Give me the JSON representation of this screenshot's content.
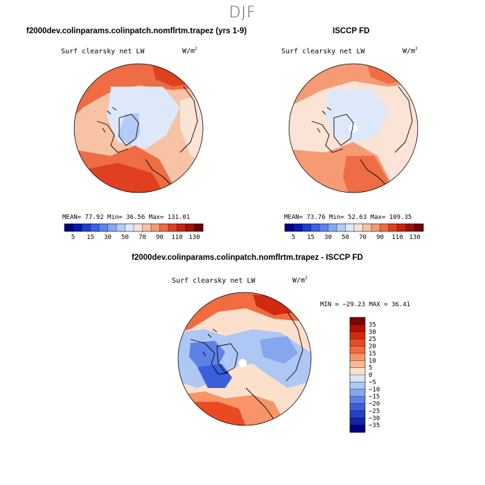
{
  "figure": {
    "title": "DJF",
    "unit_base": "W/m",
    "unit_exp": "2"
  },
  "panels": {
    "model": {
      "title": "f2000dev.colinparams.colinpatch.nomflrtm.trapez (yrs 1-9)",
      "variable": "Surf clearsky net LW",
      "mean_label": "MEAN=",
      "mean": "77.92",
      "min_label": "Min=",
      "min": "36.56",
      "max_label": "Max=",
      "max": "131.01"
    },
    "obs": {
      "title": "ISCCP FD",
      "variable": "Surf clearsky net LW",
      "mean_label": "MEAN=",
      "mean": "73.76",
      "min_label": "Min=",
      "min": "52.63",
      "max_label": "Max=",
      "max": "109.35"
    },
    "diff": {
      "title": "f2000dev.colinparams.colinpatch.nomflrtm.trapez - ISCCP FD",
      "variable": "Surf clearsky net LW",
      "minmax_text": "MIN = −29.23 MAX =  36.41"
    }
  },
  "chart_data": [
    {
      "type": "heatmap",
      "projection": "north polar stereographic",
      "title": "f2000dev.colinparams.colinpatch.nomflrtm.trapez (yrs 1-9)",
      "variable": "Surf clearsky net LW",
      "units": "W/m2",
      "stats": {
        "mean": 77.92,
        "min": 36.56,
        "max": 131.01
      },
      "colorbar": {
        "levels": [
          5,
          10,
          15,
          20,
          30,
          40,
          50,
          60,
          70,
          80,
          90,
          100,
          110,
          120,
          130
        ],
        "tick_labels": [
          "5",
          "15",
          "30",
          "50",
          "70",
          "90",
          "110",
          "130"
        ],
        "colors": [
          "#000080",
          "#0818a8",
          "#1f3fd0",
          "#3a62e2",
          "#5b84ec",
          "#86a8f1",
          "#b3cbf6",
          "#dde9fb",
          "#fbe3d6",
          "#f8c2a5",
          "#f59a73",
          "#ee6d45",
          "#e0401f",
          "#c42410",
          "#9c1208",
          "#6e0000"
        ]
      }
    },
    {
      "type": "heatmap",
      "projection": "north polar stereographic",
      "title": "ISCCP FD",
      "variable": "Surf clearsky net LW",
      "units": "W/m2",
      "stats": {
        "mean": 73.76,
        "min": 52.63,
        "max": 109.35
      },
      "colorbar": {
        "levels": [
          5,
          10,
          15,
          20,
          30,
          40,
          50,
          60,
          70,
          80,
          90,
          100,
          110,
          120,
          130
        ],
        "tick_labels": [
          "5",
          "15",
          "30",
          "50",
          "70",
          "90",
          "110",
          "130"
        ],
        "colors": [
          "#000080",
          "#0818a8",
          "#1f3fd0",
          "#3a62e2",
          "#5b84ec",
          "#86a8f1",
          "#b3cbf6",
          "#dde9fb",
          "#fbe3d6",
          "#f8c2a5",
          "#f59a73",
          "#ee6d45",
          "#e0401f",
          "#c42410",
          "#9c1208",
          "#6e0000"
        ]
      }
    },
    {
      "type": "heatmap",
      "projection": "north polar stereographic",
      "title": "f2000dev.colinparams.colinpatch.nomflrtm.trapez - ISCCP FD",
      "variable": "Surf clearsky net LW",
      "units": "W/m2",
      "stats": {
        "min": -29.23,
        "max": 36.41
      },
      "colorbar": {
        "orientation": "vertical",
        "tick_labels": [
          "35",
          "30",
          "25",
          "20",
          "15",
          "10",
          "5",
          "0",
          "−5",
          "−10",
          "−15",
          "−20",
          "−25",
          "−30",
          "−35"
        ],
        "colors": [
          "#800000",
          "#b01000",
          "#d02a10",
          "#ea4a22",
          "#f26c40",
          "#f79468",
          "#fab899",
          "#fde0cc",
          "#d7e6fb",
          "#aec7f5",
          "#86a6ee",
          "#5d82e6",
          "#3b5fda",
          "#2340c6",
          "#1024a8",
          "#00007e"
        ]
      }
    }
  ]
}
